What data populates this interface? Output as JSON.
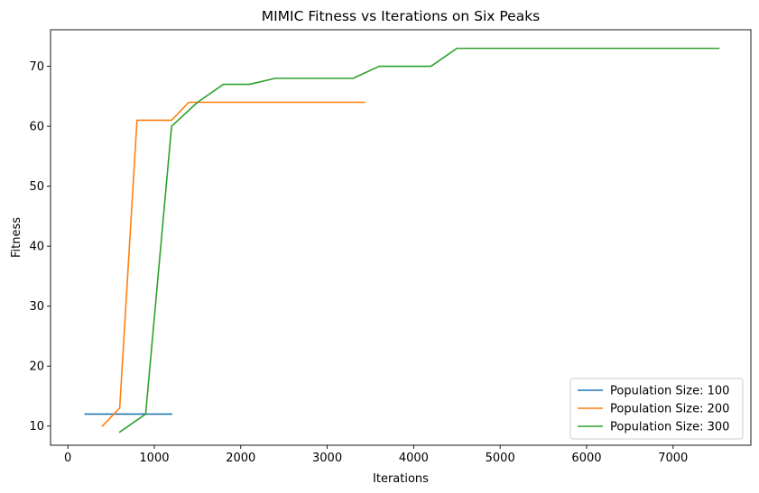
{
  "chart_data": {
    "type": "line",
    "title": "MIMIC Fitness vs Iterations on Six Peaks",
    "xlabel": "Iterations",
    "ylabel": "Fitness",
    "xlim": [
      -200,
      7900
    ],
    "ylim": [
      6.8,
      76.1
    ],
    "xticks": [
      0,
      1000,
      2000,
      3000,
      4000,
      5000,
      6000,
      7000
    ],
    "yticks": [
      10,
      20,
      30,
      40,
      50,
      60,
      70
    ],
    "grid": false,
    "legend_position": "bottom-right",
    "series": [
      {
        "name": "Population Size: 100",
        "color": "#1f77b4",
        "x": [
          200,
          1200
        ],
        "y": [
          12,
          12
        ]
      },
      {
        "name": "Population Size: 200",
        "color": "#ff7f0e",
        "x": [
          400,
          600,
          800,
          1200,
          1400,
          3430
        ],
        "y": [
          10,
          13,
          61,
          61,
          64,
          64
        ]
      },
      {
        "name": "Population Size: 300",
        "color": "#2ca02c",
        "x": [
          600,
          900,
          1200,
          1500,
          1800,
          2100,
          2400,
          3300,
          3600,
          4200,
          4500,
          7530
        ],
        "y": [
          9,
          12,
          60,
          64,
          67,
          67,
          68,
          68,
          70,
          70,
          73,
          73
        ]
      }
    ]
  }
}
